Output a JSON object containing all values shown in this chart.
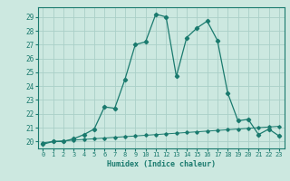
{
  "title": "",
  "xlabel": "Humidex (Indice chaleur)",
  "background_color": "#cce8e0",
  "line_color": "#1a7a6e",
  "grid_color": "#aacfc8",
  "x_main": [
    0,
    1,
    2,
    3,
    4,
    5,
    6,
    7,
    8,
    9,
    10,
    11,
    12,
    13,
    14,
    15,
    16,
    17,
    18,
    19,
    20,
    21,
    22,
    23
  ],
  "y_main": [
    19.8,
    20.0,
    20.0,
    20.2,
    20.5,
    20.9,
    22.5,
    22.4,
    24.5,
    27.0,
    27.2,
    29.2,
    29.0,
    24.7,
    27.5,
    28.2,
    28.7,
    27.3,
    23.5,
    21.5,
    21.6,
    20.5,
    20.9,
    20.4
  ],
  "y_linear": [
    19.9,
    20.0,
    20.05,
    20.1,
    20.15,
    20.2,
    20.25,
    20.3,
    20.35,
    20.4,
    20.45,
    20.5,
    20.55,
    20.6,
    20.65,
    20.7,
    20.75,
    20.8,
    20.85,
    20.9,
    20.95,
    21.0,
    21.05,
    21.1
  ],
  "ylim": [
    19.5,
    29.7
  ],
  "xlim": [
    -0.5,
    23.5
  ],
  "yticks": [
    20,
    21,
    22,
    23,
    24,
    25,
    26,
    27,
    28,
    29
  ],
  "xticks": [
    0,
    1,
    2,
    3,
    4,
    5,
    6,
    7,
    8,
    9,
    10,
    11,
    12,
    13,
    14,
    15,
    16,
    17,
    18,
    19,
    20,
    21,
    22,
    23
  ]
}
